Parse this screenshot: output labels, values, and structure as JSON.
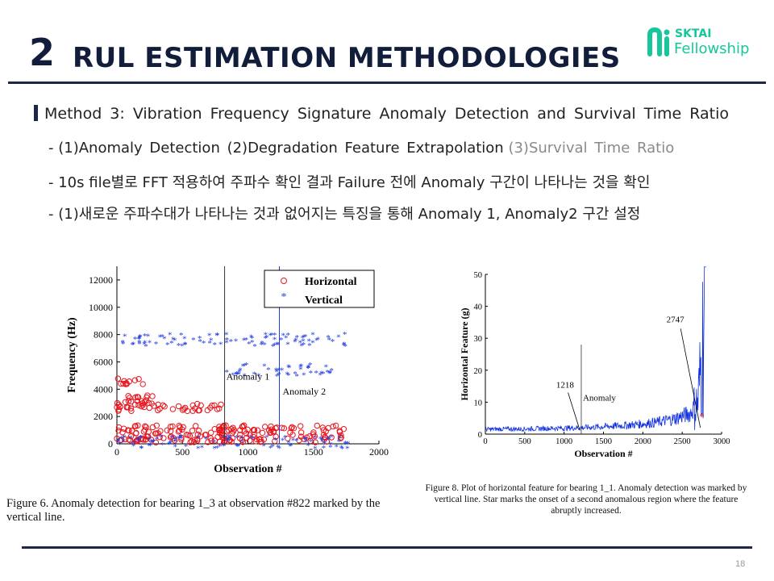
{
  "header": {
    "section_number": "2",
    "title": "RUL ESTIMATION METHODOLOGIES",
    "logo_line1": "SKTAI",
    "logo_line2": "Fellowship"
  },
  "body": {
    "method": "Method 3: Vibration Frequency Signature Anomaly Detection and Survival Time Ratio",
    "bullet1_dash": "-",
    "bullet1_main": "(1)Anomaly Detection (2)Degradation Feature Extrapolation",
    "bullet1_gray": "(3)Survival Time Ratio",
    "bullet2_dash": "-",
    "bullet2": "10s file별로 FFT 적용하여 주파수 확인 결과 Failure 전에 Anomaly 구간이 나타나는 것을 확인",
    "bullet3_dash": "-",
    "bullet3": "(1)새로운 주파수대가 나타나는 것과 없어지는 특징을 통해 Anomaly 1, Anomaly2 구간 설정"
  },
  "colors": {
    "navy": "#1d2847",
    "accent": "#17c79b"
  },
  "chart_data": [
    {
      "type": "scatter",
      "title": "",
      "xlabel": "Observation #",
      "ylabel": "Frequency (Hz)",
      "xlim": [
        0,
        2000
      ],
      "ylim": [
        0,
        13000
      ],
      "xticks": [
        "0",
        "500",
        "1000",
        "1500",
        "2000"
      ],
      "yticks": [
        "0",
        "2000",
        "4000",
        "6000",
        "8000",
        "10000",
        "12000"
      ],
      "legend": {
        "placement": "top-right",
        "entries": [
          "Horizontal",
          "Vertical"
        ]
      },
      "series": [
        {
          "name": "Horizontal",
          "color": "#e8141c",
          "marker": "circle",
          "bands": [
            {
              "x": [
                0,
                1780
              ],
              "y": 1050
            },
            {
              "x": [
                0,
                1780
              ],
              "y": 400
            },
            {
              "x": [
                0,
                822
              ],
              "y": 2700
            },
            {
              "x": [
                0,
                280
              ],
              "y": 3250
            },
            {
              "x": [
                0,
                200
              ],
              "y": 4600
            }
          ]
        },
        {
          "name": "Vertical",
          "color": "#1f3ce0",
          "marker": "star",
          "bands": [
            {
              "x": [
                0,
                1780
              ],
              "y": 7600
            },
            {
              "x": [
                0,
                1780
              ],
              "y": 100
            },
            {
              "x": [
                822,
                1650
              ],
              "y": 5400
            }
          ]
        }
      ],
      "annotations": [
        {
          "text": "Anomaly 1",
          "x": 822
        },
        {
          "text": "Anomaly 2",
          "x": 1240
        }
      ],
      "vlines": [
        822,
        1240
      ],
      "caption": "Figure 6.   Anomaly detection for bearing 1_3 at observation #822 marked by the vertical line."
    },
    {
      "type": "line",
      "title": "",
      "xlabel": "Observation #",
      "ylabel": "Horizontal Feature (g)",
      "xlim": [
        0,
        3000
      ],
      "ylim": [
        0,
        50
      ],
      "xticks": [
        "0",
        "500",
        "1000",
        "1500",
        "2000",
        "2500",
        "3000"
      ],
      "yticks": [
        "0",
        "10",
        "20",
        "30",
        "40",
        "50"
      ],
      "series": [
        {
          "name": "",
          "color": "#1030e0",
          "x": [
            0,
            200,
            400,
            600,
            800,
            1000,
            1200,
            1400,
            1600,
            1800,
            2000,
            2200,
            2400,
            2600,
            2700,
            2750,
            2800
          ],
          "y": [
            1.5,
            1.6,
            1.6,
            1.7,
            1.8,
            1.9,
            2.0,
            2.2,
            2.5,
            2.8,
            3.2,
            3.8,
            4.8,
            6.5,
            10,
            25,
            48
          ]
        }
      ],
      "annotations": [
        {
          "text": "1218",
          "x": 1218
        },
        {
          "text": "2747",
          "x": 2747
        },
        {
          "text": "Anomaly",
          "x": 1218
        }
      ],
      "vlines": [
        1218
      ],
      "caption": "Figure 8.   Plot of horizontal feature for bearing 1_1. Anomaly detection was marked by vertical line. Star marks the onset of a second anomalous region where the feature abruptly increased."
    }
  ]
}
